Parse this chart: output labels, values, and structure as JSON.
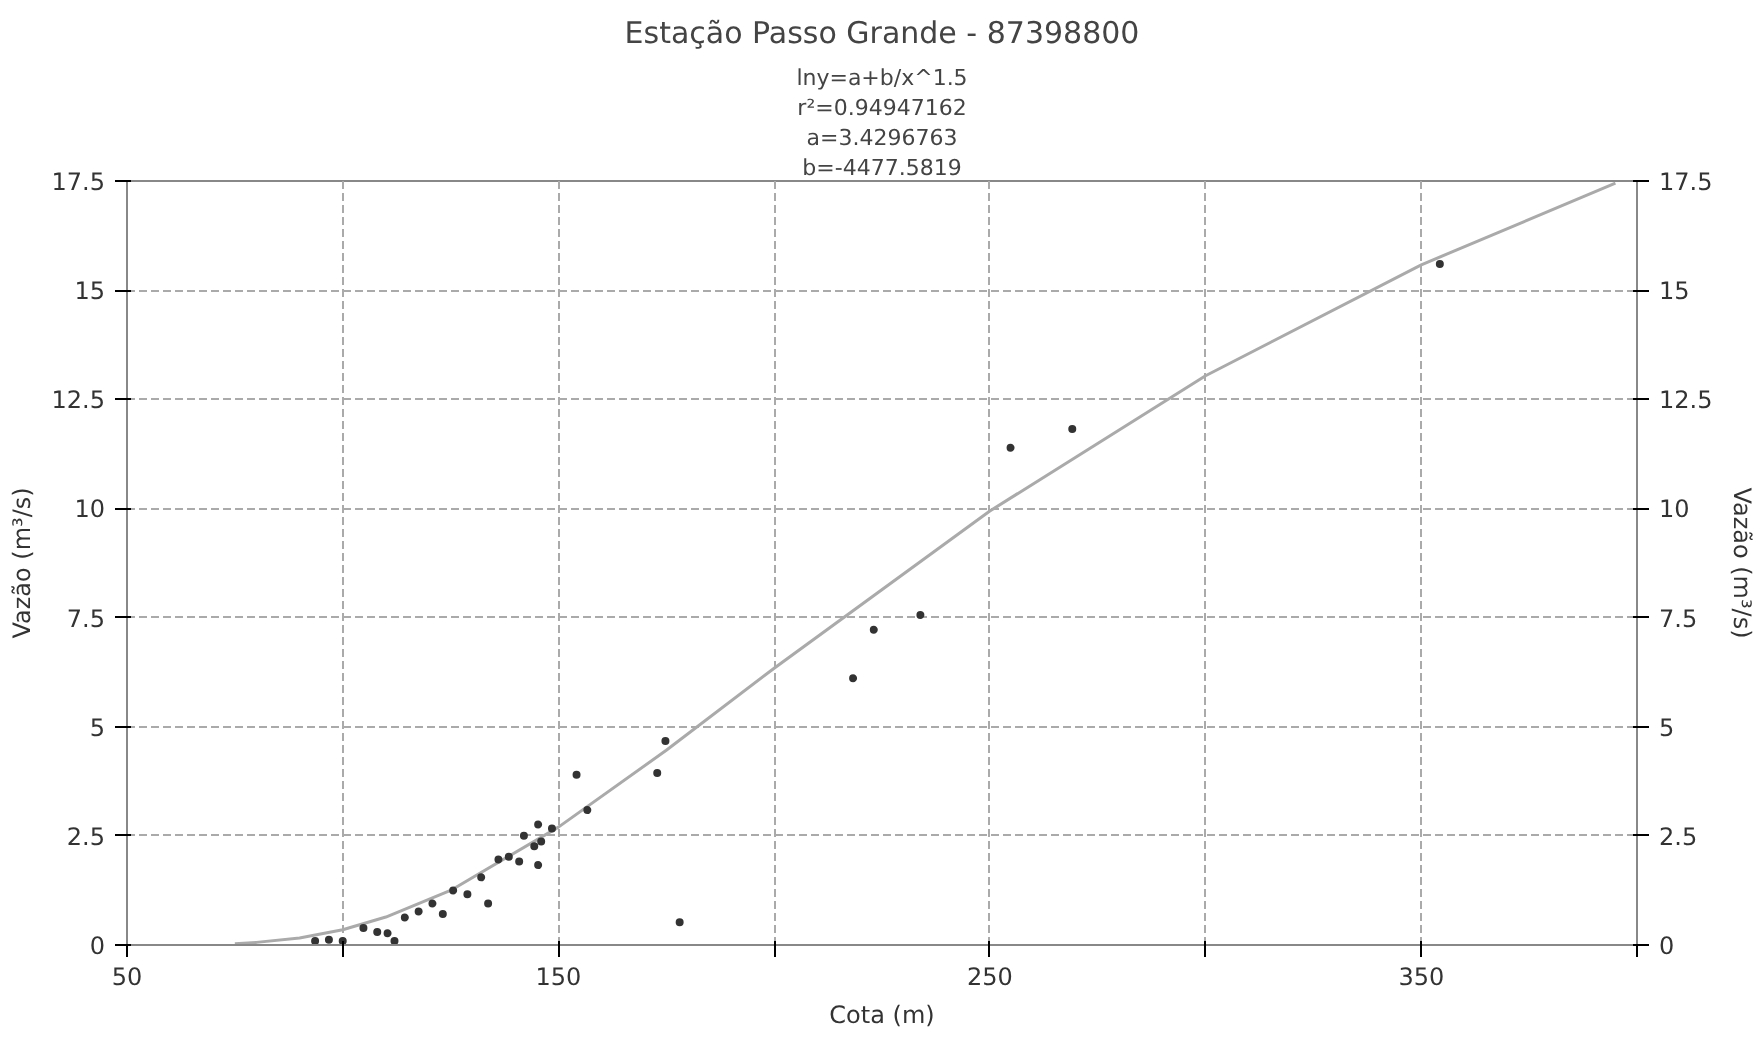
{
  "chart_data": {
    "type": "scatter",
    "title": "Estação Passo Grande - 87398800",
    "annotations": [
      "lny=a+b/x^1.5",
      "r²=0.94947162",
      "a=3.4296763",
      "b=-4477.5819"
    ],
    "xlabel": "Cota (m)",
    "ylabel": "Vazão (m³/s)",
    "y2label": "Vazão (m³/s)",
    "xlim": [
      50,
      400
    ],
    "xticks": [
      50,
      {
        "value": 100,
        "label": null
      },
      150,
      {
        "value": 200,
        "label": null
      },
      250,
      {
        "value": 300,
        "label": null
      },
      350,
      {
        "value": 400,
        "label": null
      }
    ],
    "ylim": [
      0,
      17.5
    ],
    "yticks": [
      0,
      2.5,
      5,
      7.5,
      10,
      12.5,
      15,
      17.5
    ],
    "y2lim": [
      0,
      17.5
    ],
    "y2ticks": [
      0,
      2.5,
      5,
      7.5,
      10,
      12.5,
      15,
      17.5
    ],
    "grid": true,
    "series": [
      {
        "type": "line",
        "color": "#aaaaaa",
        "marker": "none",
        "line_style": "solid",
        "x": [
          75,
          80,
          90,
          100,
          110,
          125,
          150,
          175,
          200,
          250,
          300,
          350,
          395
        ],
        "values": [
          0.03,
          0.06,
          0.16,
          0.35,
          0.64,
          1.25,
          2.7,
          4.46,
          6.34,
          9.94,
          13.04,
          15.58,
          17.45
        ]
      },
      {
        "color": "#333333",
        "marker": "circle",
        "x": [
          93.6,
          96.8,
          100.0,
          104.8,
          108.0,
          110.4,
          112.0,
          114.4,
          117.6,
          120.8,
          123.2,
          125.6,
          128.9,
          132.1,
          133.7,
          136.1,
          138.5,
          140.9,
          142.0,
          144.4,
          145.3,
          145.3,
          146.0,
          148.5,
          154.2,
          156.7,
          172.9,
          174.8,
          178.1,
          218.3,
          223.1,
          233.9,
          254.8,
          269.1,
          354.3
        ],
        "values": [
          0.09,
          0.12,
          0.09,
          0.39,
          0.3,
          0.27,
          0.09,
          0.63,
          0.77,
          0.95,
          0.71,
          1.25,
          1.16,
          1.55,
          0.95,
          1.96,
          2.02,
          1.91,
          2.5,
          2.26,
          2.76,
          1.83,
          2.37,
          2.67,
          3.9,
          3.09,
          3.94,
          4.67,
          0.52,
          6.11,
          7.22,
          7.56,
          11.39,
          11.82,
          15.6
        ]
      }
    ]
  }
}
